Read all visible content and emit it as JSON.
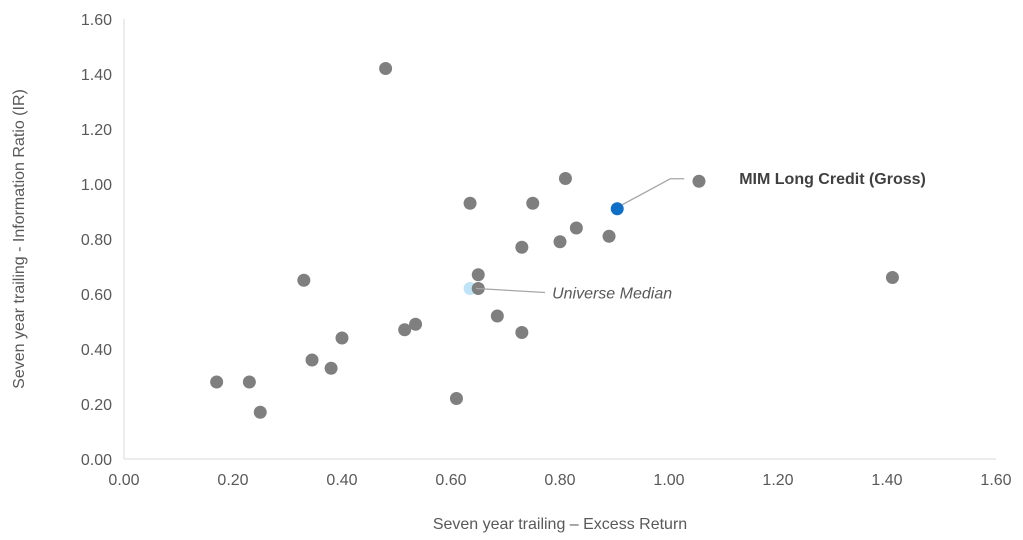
{
  "chart_data": {
    "type": "scatter",
    "xlabel": "Seven year trailing – Excess Return",
    "ylabel": "Seven year trailing - Information Ratio (IR)",
    "xlim": [
      0,
      1.6
    ],
    "ylim": [
      0,
      1.6
    ],
    "x_ticks": [
      "0.00",
      "0.20",
      "0.40",
      "0.60",
      "0.80",
      "1.00",
      "1.20",
      "1.40",
      "1.60"
    ],
    "y_ticks": [
      "0.00",
      "0.20",
      "0.40",
      "0.60",
      "0.80",
      "1.00",
      "1.20",
      "1.40",
      "1.60"
    ],
    "grid": false,
    "colors": {
      "universe": "#7f7f7f",
      "highlight": "#0f6fc6",
      "median": "#bfe3f7"
    },
    "points": [
      {
        "x": 0.17,
        "y": 0.28
      },
      {
        "x": 0.23,
        "y": 0.28
      },
      {
        "x": 0.25,
        "y": 0.17
      },
      {
        "x": 0.33,
        "y": 0.65
      },
      {
        "x": 0.345,
        "y": 0.36
      },
      {
        "x": 0.38,
        "y": 0.33
      },
      {
        "x": 0.4,
        "y": 0.44
      },
      {
        "x": 0.48,
        "y": 1.42
      },
      {
        "x": 0.515,
        "y": 0.47
      },
      {
        "x": 0.535,
        "y": 0.49
      },
      {
        "x": 0.61,
        "y": 0.22
      },
      {
        "x": 0.635,
        "y": 0.93
      },
      {
        "x": 0.65,
        "y": 0.67
      },
      {
        "x": 0.65,
        "y": 0.62
      },
      {
        "x": 0.685,
        "y": 0.52
      },
      {
        "x": 0.73,
        "y": 0.46
      },
      {
        "x": 0.73,
        "y": 0.77
      },
      {
        "x": 0.75,
        "y": 0.93
      },
      {
        "x": 0.8,
        "y": 0.79
      },
      {
        "x": 0.81,
        "y": 1.02
      },
      {
        "x": 0.83,
        "y": 0.84
      },
      {
        "x": 0.89,
        "y": 0.81
      },
      {
        "x": 1.055,
        "y": 1.01
      },
      {
        "x": 1.41,
        "y": 0.66
      }
    ],
    "highlight": {
      "x": 0.905,
      "y": 0.91,
      "label": "MIM Long Credit (Gross)"
    },
    "median": {
      "x": 0.635,
      "y": 0.62,
      "label": "Universe Median"
    }
  }
}
